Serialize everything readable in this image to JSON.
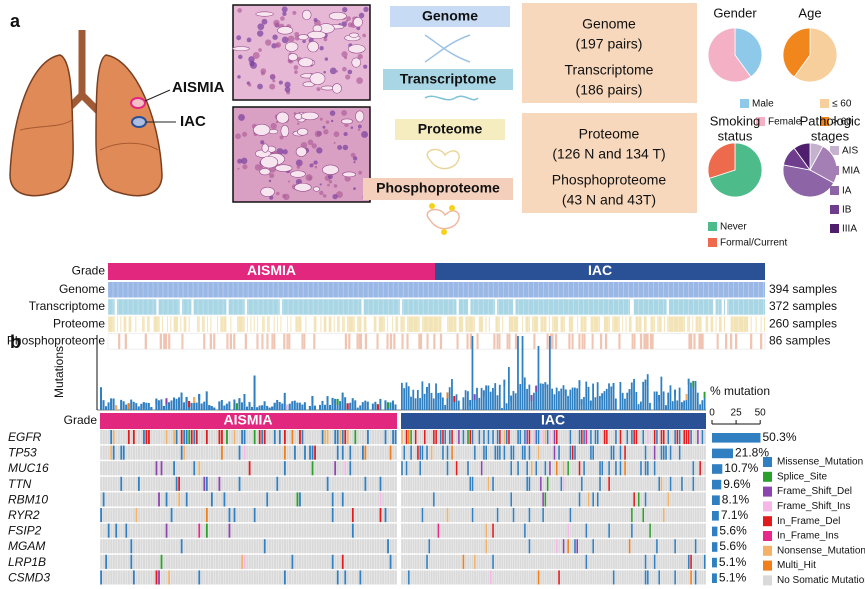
{
  "panel_a": {
    "label": "a",
    "lesion_labels": [
      "AISMIA",
      "IAC"
    ],
    "omics": [
      "Genome",
      "Transcriptome",
      "Proteome",
      "Phosphoproteome"
    ],
    "cohort_boxes": [
      [
        "Genome",
        "(197 pairs)",
        "Transcriptome",
        "(186 pairs)"
      ],
      [
        "Proteome",
        "(126 N and 134 T)",
        "Phosphoproteome",
        "(43 N and 43T)"
      ]
    ],
    "pies": [
      {
        "type": "pie",
        "title": [
          "Gender"
        ],
        "categories": [
          "Male",
          "Female"
        ],
        "values": [
          40,
          60
        ],
        "colors": [
          "#8ec9ea",
          "#f4b0c4"
        ]
      },
      {
        "type": "pie",
        "title": [
          "Age"
        ],
        "categories": [
          "≤ 60",
          "> 60"
        ],
        "values": [
          60,
          40
        ],
        "colors": [
          "#f6cf9c",
          "#f0861c"
        ]
      },
      {
        "type": "pie",
        "title": [
          "Smoking",
          "status"
        ],
        "categories": [
          "Never",
          "Formal/Current"
        ],
        "values": [
          70,
          30
        ],
        "colors": [
          "#4dbb8a",
          "#ee6a4d"
        ]
      },
      {
        "type": "pie",
        "title": [
          "Pathologic",
          "stages"
        ],
        "categories": [
          "AIS",
          "MIA",
          "IA",
          "IB",
          "IIIA"
        ],
        "values": [
          8,
          25,
          45,
          12,
          10
        ],
        "colors": [
          "#c5b2cf",
          "#a37fb5",
          "#8d65a7",
          "#6e3d8e",
          "#4f1f6e"
        ]
      }
    ],
    "grade": {
      "label": "Grade",
      "groups": [
        "AISMIA",
        "IAC"
      ]
    },
    "tracks": [
      {
        "name": "Genome",
        "count": "394 samples"
      },
      {
        "name": "Transcriptome",
        "count": "372 samples"
      },
      {
        "name": "Proteome",
        "count": "260 samples"
      },
      {
        "name": "Phosphoproteome",
        "count": "86 samples"
      }
    ]
  },
  "panel_b": {
    "label": "b",
    "y_axis": "Mutations",
    "grade": {
      "label": "Grade",
      "groups": [
        "AISMIA",
        "IAC"
      ]
    },
    "genes": [
      "EGFR",
      "TP53",
      "MUC16",
      "TTN",
      "RBM10",
      "RYR2",
      "FSIP2",
      "MGAM",
      "LRP1B",
      "CSMD3"
    ],
    "mutation_bar": {
      "type": "bar",
      "axis_label": "% mutation",
      "xlim": [
        0,
        55
      ],
      "xticks": [
        0,
        25,
        50
      ],
      "values": [
        50.3,
        21.8,
        10.7,
        9.6,
        8.1,
        7.1,
        5.6,
        5.6,
        5.1,
        5.1
      ],
      "value_labels": [
        "50.3%",
        "21.8%",
        "10.7%",
        "9.6%",
        "8.1%",
        "7.1%",
        "5.6%",
        "5.6%",
        "5.1%",
        "5.1%"
      ],
      "color": "#2f7fc1"
    },
    "legend": [
      {
        "name": "Missense_Mutation",
        "color": "#2f7fc1"
      },
      {
        "name": "Splice_Site",
        "color": "#2ca02c"
      },
      {
        "name": "Frame_Shift_Del",
        "color": "#8e44ad"
      },
      {
        "name": "Frame_Shift_Ins",
        "color": "#f7b6e8"
      },
      {
        "name": "In_Frame_Del",
        "color": "#e31a1c"
      },
      {
        "name": "In_Frame_Ins",
        "color": "#e7298a"
      },
      {
        "name": "Nonsense_Mutation",
        "color": "#f4b266"
      },
      {
        "name": "Multi_Hit",
        "color": "#f07f1a"
      },
      {
        "name": "No Somatic Mutation",
        "color": "#d9d9d9"
      }
    ]
  }
}
